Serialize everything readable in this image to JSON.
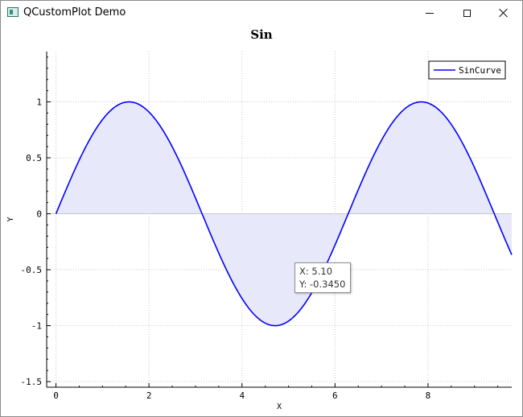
{
  "window": {
    "title": "QCustomPlot Demo",
    "icon": "qcustomplot-app-icon"
  },
  "tooltip": {
    "x_text": "X: 5.10",
    "y_text": "Y: -0.3450"
  },
  "chart_data": {
    "type": "line",
    "title": "Sin",
    "xlabel": "X",
    "ylabel": "Y",
    "xlim": [
      -0.2,
      9.8
    ],
    "ylim": [
      -1.55,
      1.45
    ],
    "x_ticks": [
      0,
      2,
      4,
      6,
      8
    ],
    "x_tick_labels": [
      "0",
      "2",
      "4",
      "6",
      "8"
    ],
    "y_ticks": [
      1,
      0.5,
      0,
      -0.5,
      -1,
      -1.5
    ],
    "y_tick_labels": [
      "1",
      "0.5",
      "0",
      "-0.5",
      "-1",
      "-1.5"
    ],
    "grid": true,
    "legend_position": "top-right",
    "series": [
      {
        "name": "SinCurve",
        "function": "sin(x)",
        "x_range": [
          0,
          9.8
        ],
        "sample_points": [
          [
            0,
            0
          ],
          [
            1.5708,
            1
          ],
          [
            3.1416,
            0
          ],
          [
            4.7124,
            -1
          ],
          [
            6.2832,
            0
          ],
          [
            7.854,
            1
          ],
          [
            9.4248,
            0
          ],
          [
            9.8,
            -0.3665
          ]
        ],
        "color": "#0000ff",
        "fill": "#e8e8fb",
        "fill_to": 0
      }
    ],
    "colors": {
      "line": "#0000ff",
      "fill": "#e8e8fb",
      "grid": "#c8c8c8",
      "zero_line": "#c8c8c8"
    }
  }
}
